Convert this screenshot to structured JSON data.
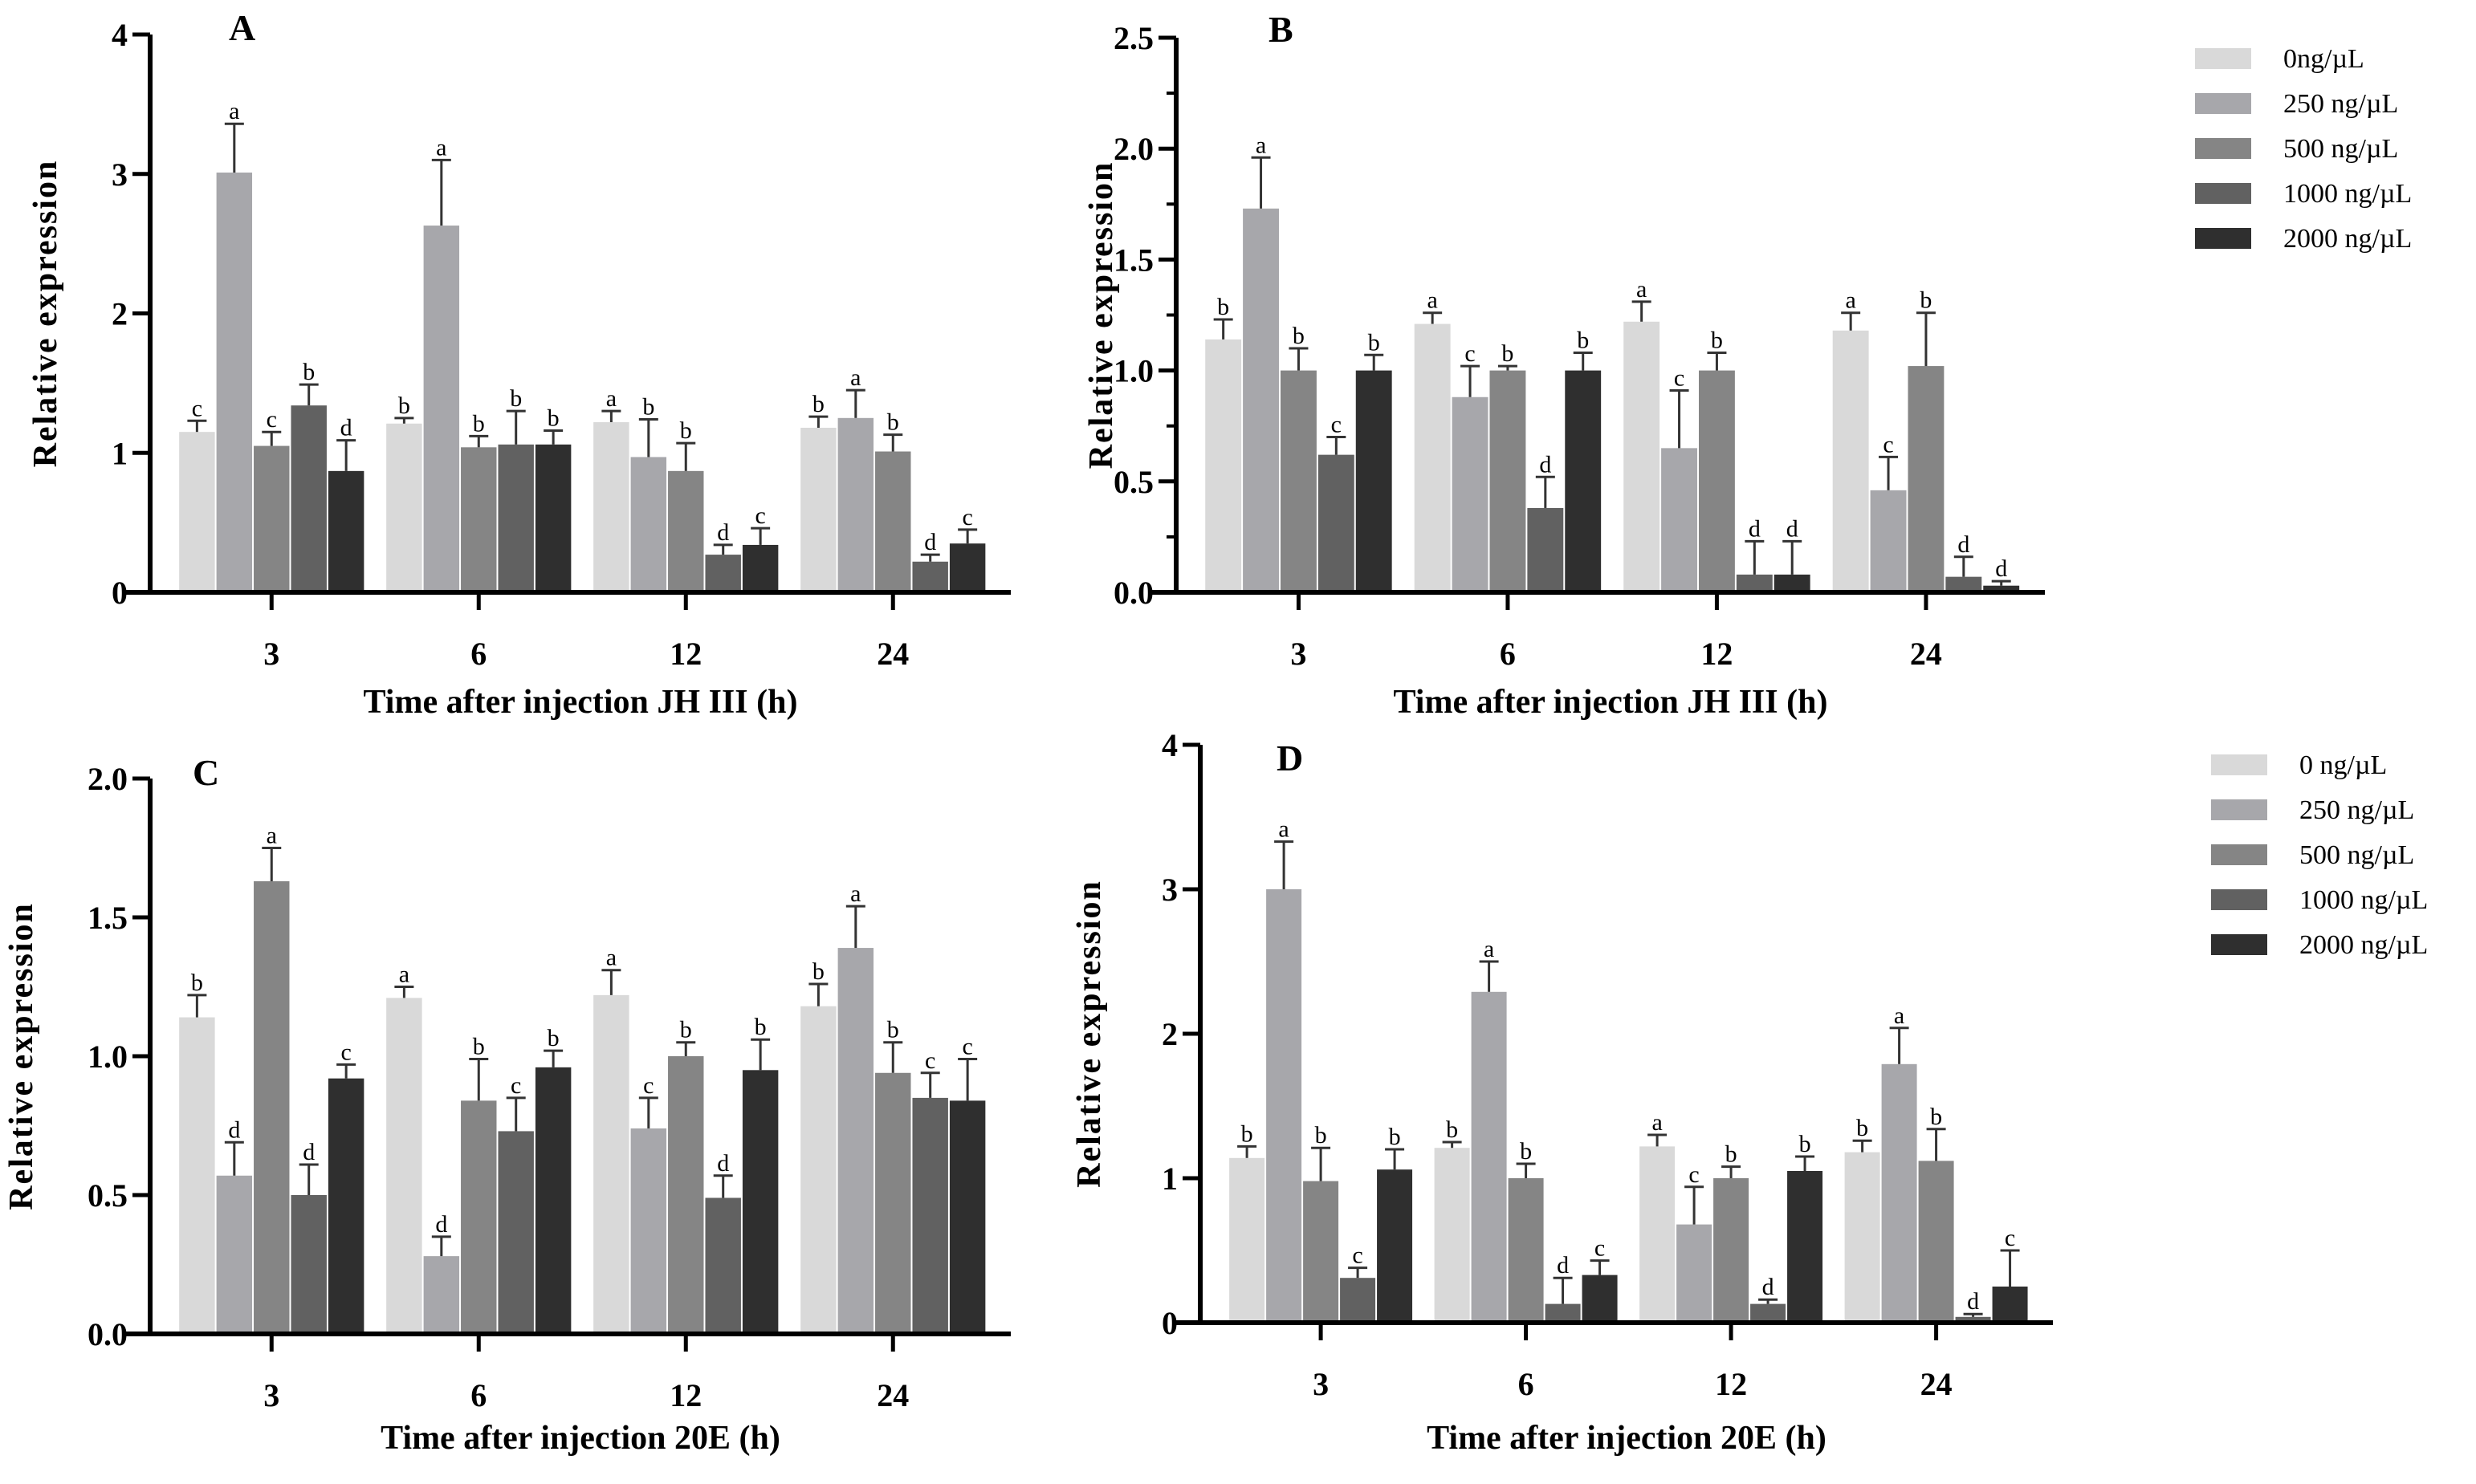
{
  "chart_data": [
    {
      "type": "bar",
      "panel_label": "A",
      "xlabel": "Time after injection JH III (h)",
      "ylabel": "Relative expression",
      "categories": [
        "3",
        "6",
        "12",
        "24"
      ],
      "ylim": [
        0,
        4
      ],
      "yticks": [
        "0",
        "1",
        "2",
        "3",
        "4"
      ],
      "series": [
        {
          "name": "0ng/µL",
          "values": [
            1.15,
            1.21,
            1.22,
            1.18
          ],
          "errors": [
            0.08,
            0.04,
            0.08,
            0.08
          ],
          "letters": [
            "c",
            "b",
            "a",
            "b"
          ]
        },
        {
          "name": "250 ng/µL",
          "values": [
            3.01,
            2.63,
            0.97,
            1.25
          ],
          "errors": [
            0.35,
            0.47,
            0.27,
            0.2
          ],
          "letters": [
            "a",
            "a",
            "b",
            "a"
          ]
        },
        {
          "name": "500 ng/µL",
          "values": [
            1.05,
            1.04,
            0.87,
            1.01
          ],
          "errors": [
            0.1,
            0.08,
            0.2,
            0.12
          ],
          "letters": [
            "c",
            "b",
            "b",
            "b"
          ]
        },
        {
          "name": "1000 ng/µL",
          "values": [
            1.34,
            1.06,
            0.27,
            0.22
          ],
          "errors": [
            0.15,
            0.24,
            0.07,
            0.05
          ],
          "letters": [
            "b",
            "b",
            "d",
            "d"
          ]
        },
        {
          "name": "2000 ng/µL",
          "values": [
            0.87,
            1.06,
            0.34,
            0.35
          ],
          "errors": [
            0.22,
            0.1,
            0.12,
            0.1
          ],
          "letters": [
            "d",
            "b",
            "c",
            "c"
          ]
        }
      ]
    },
    {
      "type": "bar",
      "panel_label": "B",
      "xlabel": "Time after injection JH III (h)",
      "ylabel": "Relative expression",
      "categories": [
        "3",
        "6",
        "12",
        "24"
      ],
      "ylim": [
        0,
        2.5
      ],
      "yticks": [
        "0.0",
        "0.5",
        "1.0",
        "1.5",
        "2.0",
        "2.5"
      ],
      "legend": [
        "0ng/µL",
        "250 ng/µL",
        "500 ng/µL",
        "1000 ng/µL",
        "2000 ng/µL"
      ],
      "legend_position": "right",
      "series": [
        {
          "name": "0ng/µL",
          "values": [
            1.14,
            1.21,
            1.22,
            1.18
          ],
          "errors": [
            0.09,
            0.05,
            0.09,
            0.08
          ],
          "letters": [
            "b",
            "a",
            "a",
            "a"
          ]
        },
        {
          "name": "250 ng/µL",
          "values": [
            1.73,
            0.88,
            0.65,
            0.46
          ],
          "errors": [
            0.23,
            0.14,
            0.26,
            0.15
          ],
          "letters": [
            "a",
            "c",
            "c",
            "c"
          ]
        },
        {
          "name": "500 ng/µL",
          "values": [
            1.0,
            1.0,
            1.0,
            1.02
          ],
          "errors": [
            0.1,
            0.02,
            0.08,
            0.24
          ],
          "letters": [
            "b",
            "b",
            "b",
            "b"
          ]
        },
        {
          "name": "1000 ng/µL",
          "values": [
            0.62,
            0.38,
            0.08,
            0.07
          ],
          "errors": [
            0.08,
            0.14,
            0.15,
            0.09
          ],
          "letters": [
            "c",
            "d",
            "d",
            "d"
          ]
        },
        {
          "name": "2000 ng/µL",
          "values": [
            1.0,
            1.0,
            0.08,
            0.03
          ],
          "errors": [
            0.07,
            0.08,
            0.15,
            0.02
          ],
          "letters": [
            "b",
            "b",
            "d",
            "d"
          ]
        }
      ]
    },
    {
      "type": "bar",
      "panel_label": "C",
      "xlabel": "Time after injection 20E (h)",
      "ylabel": "Relative expression",
      "categories": [
        "3",
        "6",
        "12",
        "24"
      ],
      "ylim": [
        0,
        2.0
      ],
      "yticks": [
        "0.0",
        "0.5",
        "1.0",
        "1.5",
        "2.0"
      ],
      "series": [
        {
          "name": "0 ng/µL",
          "values": [
            1.14,
            1.21,
            1.22,
            1.18
          ],
          "errors": [
            0.08,
            0.04,
            0.09,
            0.08
          ],
          "letters": [
            "b",
            "a",
            "a",
            "b"
          ]
        },
        {
          "name": "250 ng/µL",
          "values": [
            0.57,
            0.28,
            0.74,
            1.39
          ],
          "errors": [
            0.12,
            0.07,
            0.11,
            0.15
          ],
          "letters": [
            "d",
            "d",
            "c",
            "a"
          ]
        },
        {
          "name": "500 ng/µL",
          "values": [
            1.63,
            0.84,
            1.0,
            0.94
          ],
          "errors": [
            0.12,
            0.15,
            0.05,
            0.11
          ],
          "letters": [
            "a",
            "b",
            "b",
            "b"
          ]
        },
        {
          "name": "1000 ng/µL",
          "values": [
            0.5,
            0.73,
            0.49,
            0.85
          ],
          "errors": [
            0.11,
            0.12,
            0.08,
            0.09
          ],
          "letters": [
            "d",
            "c",
            "d",
            "c"
          ]
        },
        {
          "name": "2000 ng/µL",
          "values": [
            0.92,
            0.96,
            0.95,
            0.84
          ],
          "errors": [
            0.05,
            0.06,
            0.11,
            0.15
          ],
          "letters": [
            "c",
            "b",
            "b",
            "c"
          ]
        }
      ]
    },
    {
      "type": "bar",
      "panel_label": "D",
      "xlabel": "Time after injection 20E (h)",
      "ylabel": "Relative expression",
      "categories": [
        "3",
        "6",
        "12",
        "24"
      ],
      "ylim": [
        0,
        4
      ],
      "yticks": [
        "0",
        "1",
        "2",
        "3",
        "4"
      ],
      "legend": [
        "0 ng/µL",
        "250 ng/µL",
        "500 ng/µL",
        "1000 ng/µL",
        "2000 ng/µL"
      ],
      "legend_position": "right",
      "series": [
        {
          "name": "0 ng/µL",
          "values": [
            1.14,
            1.21,
            1.22,
            1.18
          ],
          "errors": [
            0.08,
            0.04,
            0.08,
            0.08
          ],
          "letters": [
            "b",
            "b",
            "a",
            "b"
          ]
        },
        {
          "name": "250 ng/µL",
          "values": [
            3.0,
            2.29,
            0.68,
            1.79
          ],
          "errors": [
            0.33,
            0.21,
            0.26,
            0.25
          ],
          "letters": [
            "a",
            "a",
            "c",
            "a"
          ]
        },
        {
          "name": "500 ng/µL",
          "values": [
            0.98,
            1.0,
            1.0,
            1.12
          ],
          "errors": [
            0.23,
            0.1,
            0.08,
            0.22
          ],
          "letters": [
            "b",
            "b",
            "b",
            "b"
          ]
        },
        {
          "name": "1000 ng/µL",
          "values": [
            0.31,
            0.13,
            0.13,
            0.04
          ],
          "errors": [
            0.07,
            0.18,
            0.03,
            0.02
          ],
          "letters": [
            "c",
            "d",
            "d",
            "d"
          ]
        },
        {
          "name": "2000 ng/µL",
          "values": [
            1.06,
            0.33,
            1.05,
            0.25
          ],
          "errors": [
            0.14,
            0.1,
            0.1,
            0.25
          ],
          "letters": [
            "b",
            "c",
            "b",
            "c"
          ]
        }
      ]
    }
  ],
  "colors": [
    "#d9d9d9",
    "#a7a7ab",
    "#858585",
    "#616161",
    "#2f2f2f"
  ]
}
